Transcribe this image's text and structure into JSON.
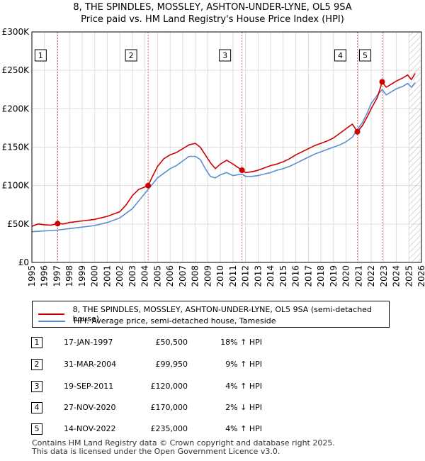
{
  "title_line1": "8, THE SPINDLES, MOSSLEY, ASHTON-UNDER-LYNE, OL5 9SA",
  "title_line2": "Price paid vs. HM Land Registry's House Price Index (HPI)",
  "colors": {
    "property": "#cc0000",
    "hpi": "#5b8fd0",
    "marker_line": "#e06060",
    "hatch": "#bbbbbb",
    "grid": "#dddddd"
  },
  "chart_data": {
    "type": "line",
    "x_range": [
      1995,
      2026
    ],
    "ylim": [
      0,
      300000
    ],
    "y_ticks": [
      0,
      50000,
      100000,
      150000,
      200000,
      250000,
      300000
    ],
    "y_tick_labels": [
      "£0",
      "£50K",
      "£100K",
      "£150K",
      "£200K",
      "£250K",
      "£300K"
    ],
    "x_ticks": [
      1995,
      1996,
      1997,
      1998,
      1999,
      2000,
      2001,
      2002,
      2003,
      2004,
      2005,
      2006,
      2007,
      2008,
      2009,
      2010,
      2011,
      2012,
      2013,
      2014,
      2015,
      2016,
      2017,
      2018,
      2019,
      2020,
      2021,
      2022,
      2023,
      2024,
      2025,
      2026
    ],
    "forecast_start": 2025.0,
    "series": [
      {
        "name": "8, THE SPINDLES, MOSSLEY, ASHTON-UNDER-LYNE, OL5 9SA (semi-detached house)",
        "color": "#cc0000",
        "points": [
          [
            1995,
            47000
          ],
          [
            1995.5,
            50000
          ],
          [
            1996,
            49000
          ],
          [
            1996.5,
            48500
          ],
          [
            1997.05,
            50500
          ],
          [
            1997.5,
            50000
          ],
          [
            1998,
            52000
          ],
          [
            1999,
            54000
          ],
          [
            2000,
            56000
          ],
          [
            2001,
            60000
          ],
          [
            2002,
            66000
          ],
          [
            2002.5,
            75000
          ],
          [
            2003,
            87000
          ],
          [
            2003.5,
            95000
          ],
          [
            2004.25,
            99950
          ],
          [
            2004.6,
            112000
          ],
          [
            2005,
            125000
          ],
          [
            2005.5,
            135000
          ],
          [
            2006,
            140000
          ],
          [
            2006.5,
            143000
          ],
          [
            2007,
            148000
          ],
          [
            2007.5,
            153000
          ],
          [
            2008,
            155000
          ],
          [
            2008.4,
            150000
          ],
          [
            2008.8,
            140000
          ],
          [
            2009.2,
            130000
          ],
          [
            2009.6,
            122000
          ],
          [
            2010,
            128000
          ],
          [
            2010.5,
            133000
          ],
          [
            2011,
            128000
          ],
          [
            2011.72,
            120000
          ],
          [
            2012,
            117000
          ],
          [
            2012.5,
            118000
          ],
          [
            2013,
            120000
          ],
          [
            2013.5,
            123000
          ],
          [
            2014,
            126000
          ],
          [
            2014.5,
            128000
          ],
          [
            2015,
            131000
          ],
          [
            2015.5,
            135000
          ],
          [
            2016,
            140000
          ],
          [
            2016.5,
            144000
          ],
          [
            2017,
            148000
          ],
          [
            2017.5,
            152000
          ],
          [
            2018,
            155000
          ],
          [
            2018.5,
            158000
          ],
          [
            2019,
            162000
          ],
          [
            2019.5,
            168000
          ],
          [
            2020,
            174000
          ],
          [
            2020.5,
            180000
          ],
          [
            2020.9,
            170000
          ],
          [
            2021.3,
            178000
          ],
          [
            2021.7,
            190000
          ],
          [
            2022,
            200000
          ],
          [
            2022.5,
            215000
          ],
          [
            2022.87,
            235000
          ],
          [
            2023.2,
            228000
          ],
          [
            2023.6,
            232000
          ],
          [
            2024,
            236000
          ],
          [
            2024.5,
            240000
          ],
          [
            2024.9,
            244000
          ],
          [
            2025.2,
            238000
          ],
          [
            2025.5,
            246000
          ]
        ]
      },
      {
        "name": "HPI: Average price, semi-detached house, Tameside",
        "color": "#5b8fd0",
        "points": [
          [
            1995,
            40000
          ],
          [
            1996,
            41000
          ],
          [
            1997,
            42000
          ],
          [
            1998,
            44000
          ],
          [
            1999,
            46000
          ],
          [
            2000,
            48000
          ],
          [
            2001,
            52000
          ],
          [
            2002,
            58000
          ],
          [
            2003,
            70000
          ],
          [
            2004,
            90000
          ],
          [
            2004.5,
            100000
          ],
          [
            2005,
            110000
          ],
          [
            2005.5,
            116000
          ],
          [
            2006,
            122000
          ],
          [
            2006.5,
            126000
          ],
          [
            2007,
            132000
          ],
          [
            2007.5,
            138000
          ],
          [
            2008,
            138000
          ],
          [
            2008.4,
            134000
          ],
          [
            2008.8,
            122000
          ],
          [
            2009.2,
            112000
          ],
          [
            2009.6,
            110000
          ],
          [
            2010,
            114000
          ],
          [
            2010.5,
            117000
          ],
          [
            2011,
            113000
          ],
          [
            2011.72,
            115000
          ],
          [
            2012,
            112000
          ],
          [
            2012.5,
            112000
          ],
          [
            2013,
            113000
          ],
          [
            2013.5,
            115000
          ],
          [
            2014,
            117000
          ],
          [
            2014.5,
            120000
          ],
          [
            2015,
            122000
          ],
          [
            2015.5,
            125000
          ],
          [
            2016,
            129000
          ],
          [
            2016.5,
            133000
          ],
          [
            2017,
            137000
          ],
          [
            2017.5,
            141000
          ],
          [
            2018,
            144000
          ],
          [
            2018.5,
            147000
          ],
          [
            2019,
            150000
          ],
          [
            2019.5,
            153000
          ],
          [
            2020,
            157000
          ],
          [
            2020.5,
            163000
          ],
          [
            2020.9,
            173000
          ],
          [
            2021.3,
            182000
          ],
          [
            2021.7,
            195000
          ],
          [
            2022,
            207000
          ],
          [
            2022.5,
            218000
          ],
          [
            2022.87,
            225000
          ],
          [
            2023.2,
            218000
          ],
          [
            2023.6,
            222000
          ],
          [
            2024,
            226000
          ],
          [
            2024.5,
            229000
          ],
          [
            2024.9,
            233000
          ],
          [
            2025.2,
            228000
          ],
          [
            2025.5,
            234000
          ]
        ]
      }
    ],
    "sales": [
      {
        "n": "1",
        "x": 1997.05,
        "y": 50500
      },
      {
        "n": "2",
        "x": 2004.25,
        "y": 99950
      },
      {
        "n": "3",
        "x": 2011.72,
        "y": 120000
      },
      {
        "n": "4",
        "x": 2020.9,
        "y": 170000
      },
      {
        "n": "5",
        "x": 2022.87,
        "y": 235000
      }
    ]
  },
  "legend": {
    "property_label": "8, THE SPINDLES, MOSSLEY, ASHTON-UNDER-LYNE, OL5 9SA (semi-detached house)",
    "hpi_label": "HPI: Average price, semi-detached house, Tameside"
  },
  "transactions": [
    {
      "n": "1",
      "date": "17-JAN-1997",
      "price": "£50,500",
      "hpi": "18% ↑ HPI"
    },
    {
      "n": "2",
      "date": "31-MAR-2004",
      "price": "£99,950",
      "hpi": "9% ↑ HPI"
    },
    {
      "n": "3",
      "date": "19-SEP-2011",
      "price": "£120,000",
      "hpi": "4% ↑ HPI"
    },
    {
      "n": "4",
      "date": "27-NOV-2020",
      "price": "£170,000",
      "hpi": "2% ↓ HPI"
    },
    {
      "n": "5",
      "date": "14-NOV-2022",
      "price": "£235,000",
      "hpi": "4% ↑ HPI"
    }
  ],
  "footer_line1": "Contains HM Land Registry data © Crown copyright and database right 2025.",
  "footer_line2": "This data is licensed under the Open Government Licence v3.0."
}
